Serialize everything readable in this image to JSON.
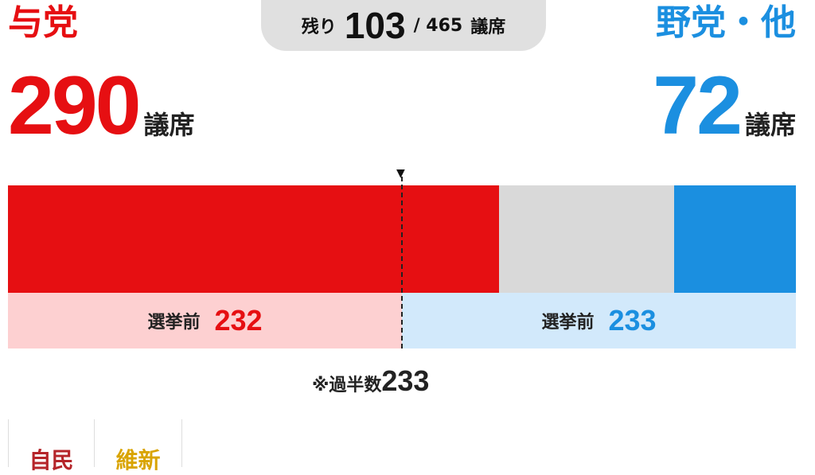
{
  "ruling": {
    "label": "与党",
    "seats": "290",
    "unit": "議席",
    "prev_label": "選挙前",
    "prev_seats": "232",
    "color": "#e60f12",
    "prev_bg": "#fdd0d1"
  },
  "opposition": {
    "label": "野党・他",
    "seats": "72",
    "unit": "議席",
    "prev_label": "選挙前",
    "prev_seats": "233",
    "color": "#1b8fe0",
    "prev_bg": "#d2e9fb"
  },
  "remaining": {
    "label": "残り",
    "value": "103",
    "total": "/ 465",
    "unit": "議席",
    "color": "#d9d9d9"
  },
  "seat_bar": {
    "total": 465,
    "ruling": 290,
    "undecided": 103,
    "opposition": 72
  },
  "majority": {
    "label": "※過半数",
    "value": "233"
  },
  "party_tabs": [
    {
      "label": "自民",
      "color": "#b5252a"
    },
    {
      "label": "維新",
      "color": "#d9a400"
    }
  ]
}
